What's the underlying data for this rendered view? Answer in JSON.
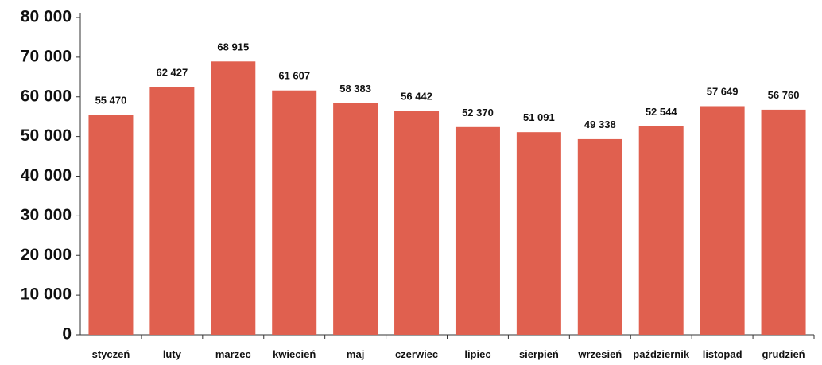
{
  "chart_data": {
    "type": "bar",
    "title": "",
    "xlabel": "",
    "ylabel": "",
    "categories": [
      "styczeń",
      "luty",
      "marzec",
      "kwiecień",
      "maj",
      "czerwiec",
      "lipiec",
      "sierpień",
      "wrzesień",
      "październik",
      "listopad",
      "grudzień"
    ],
    "values": [
      55470,
      62427,
      68915,
      61607,
      58383,
      56442,
      52370,
      51091,
      49338,
      52544,
      57649,
      56760
    ],
    "value_labels": [
      "55 470",
      "62 427",
      "68 915",
      "61 607",
      "58 383",
      "56 442",
      "52 370",
      "51 091",
      "49 338",
      "52 544",
      "57 649",
      "56 760"
    ],
    "ylim": [
      0,
      80000
    ],
    "yticks": [
      0,
      10000,
      20000,
      30000,
      40000,
      50000,
      60000,
      70000,
      80000
    ],
    "ytick_labels": [
      "0",
      "10 000",
      "20 000",
      "30 000",
      "40 000",
      "50 000",
      "60 000",
      "70 000",
      "80 000"
    ],
    "grid": false,
    "legend": "none",
    "bar_color": "#E0604F"
  }
}
